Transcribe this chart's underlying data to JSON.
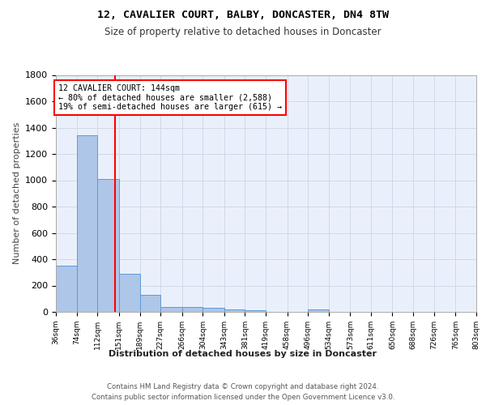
{
  "title1": "12, CAVALIER COURT, BALBY, DONCASTER, DN4 8TW",
  "title2": "Size of property relative to detached houses in Doncaster",
  "xlabel": "Distribution of detached houses by size in Doncaster",
  "ylabel": "Number of detached properties",
  "bin_edges": [
    36,
    74,
    112,
    151,
    189,
    227,
    266,
    304,
    343,
    381,
    419,
    458,
    496,
    534,
    573,
    611,
    650,
    688,
    726,
    765,
    803
  ],
  "bar_heights": [
    350,
    1340,
    1010,
    290,
    130,
    40,
    35,
    30,
    20,
    15,
    0,
    0,
    20,
    0,
    0,
    0,
    0,
    0,
    0,
    0
  ],
  "bar_color": "#aec6e8",
  "bar_edge_color": "#5b9bd5",
  "grid_color": "#d0d8e8",
  "bg_color": "#eaf0fb",
  "red_line_x": 144,
  "ylim": [
    0,
    1800
  ],
  "yticks": [
    0,
    200,
    400,
    600,
    800,
    1000,
    1200,
    1400,
    1600,
    1800
  ],
  "annotation_title": "12 CAVALIER COURT: 144sqm",
  "annotation_line1": "← 80% of detached houses are smaller (2,588)",
  "annotation_line2": "19% of semi-detached houses are larger (615) →",
  "footer1": "Contains HM Land Registry data © Crown copyright and database right 2024.",
  "footer2": "Contains public sector information licensed under the Open Government Licence v3.0."
}
